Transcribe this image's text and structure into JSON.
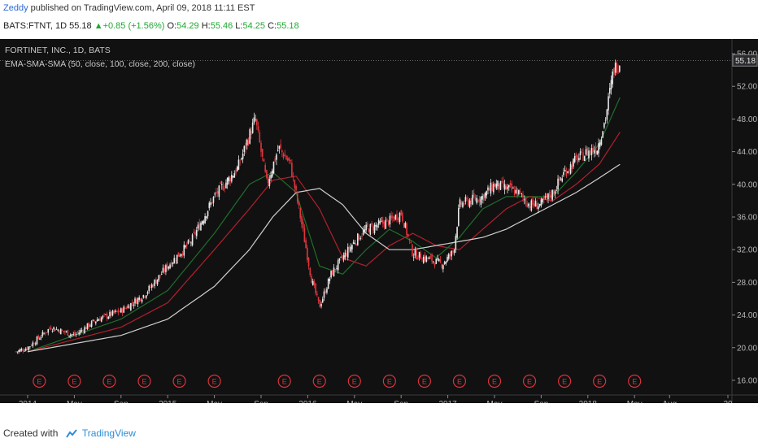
{
  "header": {
    "author": "Zeddy",
    "published_text": "published on TradingView.com, April 09, 2018 11:11 EST",
    "symbol": "BATS:FTNT, 1D",
    "last": "55.18",
    "change": "+0.85 (+1.56%)",
    "open_label": "O:",
    "open": "54.29",
    "high_label": "H:",
    "high": "55.46",
    "low_label": "L:",
    "low": "54.25",
    "close_label": "C:",
    "close": "55.18"
  },
  "chart_legend": {
    "title": "FORTINET, INC., 1D, BATS",
    "indicator": "EMA-SMA-SMA (50, close, 100, close, 200, close)"
  },
  "footer": {
    "created_with": "Created with",
    "brand": "TradingView"
  },
  "colors": {
    "background": "#111112",
    "up": "#e8e8e8",
    "down": "#e0353b",
    "ema50": "#1f6e2a",
    "sma100": "#b2202a",
    "sma200": "#cfcfcf",
    "earnings": "#d9333a"
  },
  "chart_data": {
    "type": "candlestick",
    "title": "FORTINET, INC., 1D, BATS",
    "ylim": [
      15,
      57
    ],
    "y_ticks": [
      "56.00",
      "52.00",
      "48.00",
      "44.00",
      "40.00",
      "36.00",
      "32.00",
      "28.00",
      "24.00",
      "20.00",
      "16.00"
    ],
    "y_tick_values": [
      56,
      52,
      48,
      44,
      40,
      36,
      32,
      28,
      24,
      20,
      16
    ],
    "last_price_label": "55.18",
    "last_price": 55.18,
    "x_ticks": [
      "2014",
      "May",
      "Sep",
      "2015",
      "May",
      "Sep",
      "2016",
      "May",
      "Sep",
      "2017",
      "May",
      "Sep",
      "2018",
      "May",
      "Aug",
      "20"
    ],
    "x_tick_months": [
      0,
      4,
      8,
      12,
      16,
      20,
      24,
      28,
      32,
      36,
      40,
      44,
      48,
      52,
      55,
      60
    ],
    "price_path": {
      "months": [
        -1,
        0,
        2,
        4,
        6,
        8,
        10,
        12,
        14,
        16,
        18,
        19.5,
        20.5,
        21.5,
        22.5,
        23.5,
        24.3,
        25,
        26,
        27,
        28,
        29,
        30,
        31,
        32,
        33,
        34,
        34.5,
        35.5,
        36.5,
        37,
        37.5,
        39,
        40,
        41,
        42,
        43,
        44,
        45,
        46,
        47,
        48,
        48.8,
        49.5,
        50.2,
        50.8
      ],
      "close": [
        19.5,
        20,
        22.5,
        21.5,
        23.5,
        24.5,
        26.5,
        30,
        33,
        38.5,
        42,
        48,
        40,
        44.5,
        42.5,
        35,
        28.5,
        25,
        29,
        31,
        33,
        34.5,
        35,
        35.5,
        36.5,
        31.5,
        31,
        30.8,
        30.2,
        31.8,
        37.5,
        37.8,
        38.5,
        40,
        39.5,
        39,
        37.5,
        37.5,
        39,
        41.5,
        43,
        44,
        44.5,
        48,
        54,
        55.18
      ]
    },
    "series": [
      {
        "name": "EMA 50",
        "months": [
          0,
          4,
          8,
          12,
          16,
          19,
          21,
          23,
          25,
          27,
          29,
          31,
          33,
          35,
          37,
          39,
          41,
          43,
          45,
          47,
          49,
          50.8
        ],
        "values": [
          19.5,
          21.5,
          23.5,
          27,
          34,
          40,
          41.5,
          39,
          30,
          29,
          32,
          34.5,
          33,
          31,
          33.5,
          37,
          38.5,
          38.5,
          38.5,
          41.5,
          45,
          50.8
        ]
      },
      {
        "name": "SMA 100",
        "months": [
          0,
          4,
          8,
          12,
          16,
          19,
          21,
          23,
          25,
          27,
          29,
          31,
          33,
          35,
          37,
          39,
          41,
          43,
          45,
          47,
          49,
          50.8
        ],
        "values": [
          19.5,
          21,
          22.5,
          25.5,
          32,
          37,
          40.5,
          41,
          37,
          31,
          30,
          32.5,
          34,
          32.5,
          32,
          34.5,
          37,
          38.5,
          38,
          40,
          42.5,
          46.5
        ]
      },
      {
        "name": "SMA 200",
        "months": [
          0,
          4,
          8,
          12,
          16,
          19,
          21,
          23,
          25,
          27,
          29,
          31,
          33,
          35,
          37,
          39,
          41,
          43,
          45,
          47,
          49,
          50.8
        ],
        "values": [
          19.5,
          20.5,
          21.5,
          23.5,
          27.5,
          32,
          36,
          39,
          39.5,
          37.5,
          34,
          32,
          32,
          32.5,
          33,
          33.5,
          34.5,
          36,
          37.5,
          39,
          40.8,
          42.5
        ]
      }
    ],
    "earnings_markers": {
      "label": "E",
      "months": [
        1,
        4,
        7,
        10,
        13,
        16,
        22,
        25,
        28,
        31,
        34,
        37,
        40,
        43,
        46,
        49,
        52
      ]
    }
  }
}
